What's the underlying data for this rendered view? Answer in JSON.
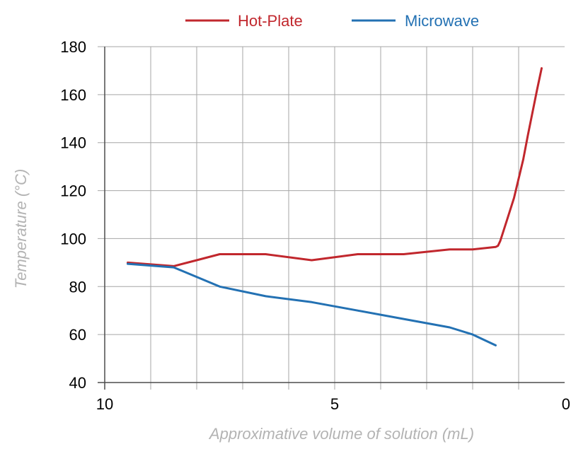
{
  "chart_data": {
    "type": "line",
    "title": "",
    "xlabel": "Approximative volume of solution (mL)",
    "ylabel": "Temperature (°C)",
    "xlim": [
      10,
      0
    ],
    "ylim": [
      40,
      180
    ],
    "x_ticks": [
      10,
      5,
      0
    ],
    "y_ticks": [
      40,
      60,
      80,
      100,
      120,
      140,
      160,
      180
    ],
    "x_grid_step": 1,
    "grid": true,
    "legend_position": "top",
    "series": [
      {
        "name": "Hot-Plate",
        "color": "#c1272d",
        "x": [
          9.5,
          8.5,
          8.0,
          7.5,
          6.5,
          5.5,
          4.5,
          3.5,
          2.5,
          2.0,
          1.5,
          1.45,
          1.4,
          1.35,
          1.25,
          1.1,
          0.9,
          0.8,
          0.6,
          0.5
        ],
        "y": [
          90,
          88.5,
          91,
          93.5,
          93.5,
          91,
          93.5,
          93.5,
          95.5,
          95.5,
          96.5,
          97,
          99,
          102,
          108,
          117,
          133,
          143,
          162,
          171
        ]
      },
      {
        "name": "Microwave",
        "color": "#2371b3",
        "x": [
          9.5,
          8.5,
          7.5,
          6.5,
          5.5,
          4.5,
          3.5,
          2.5,
          2.0,
          1.5
        ],
        "y": [
          89.5,
          88,
          80,
          76,
          73.5,
          70,
          66.5,
          63,
          60,
          55.5
        ]
      }
    ]
  }
}
